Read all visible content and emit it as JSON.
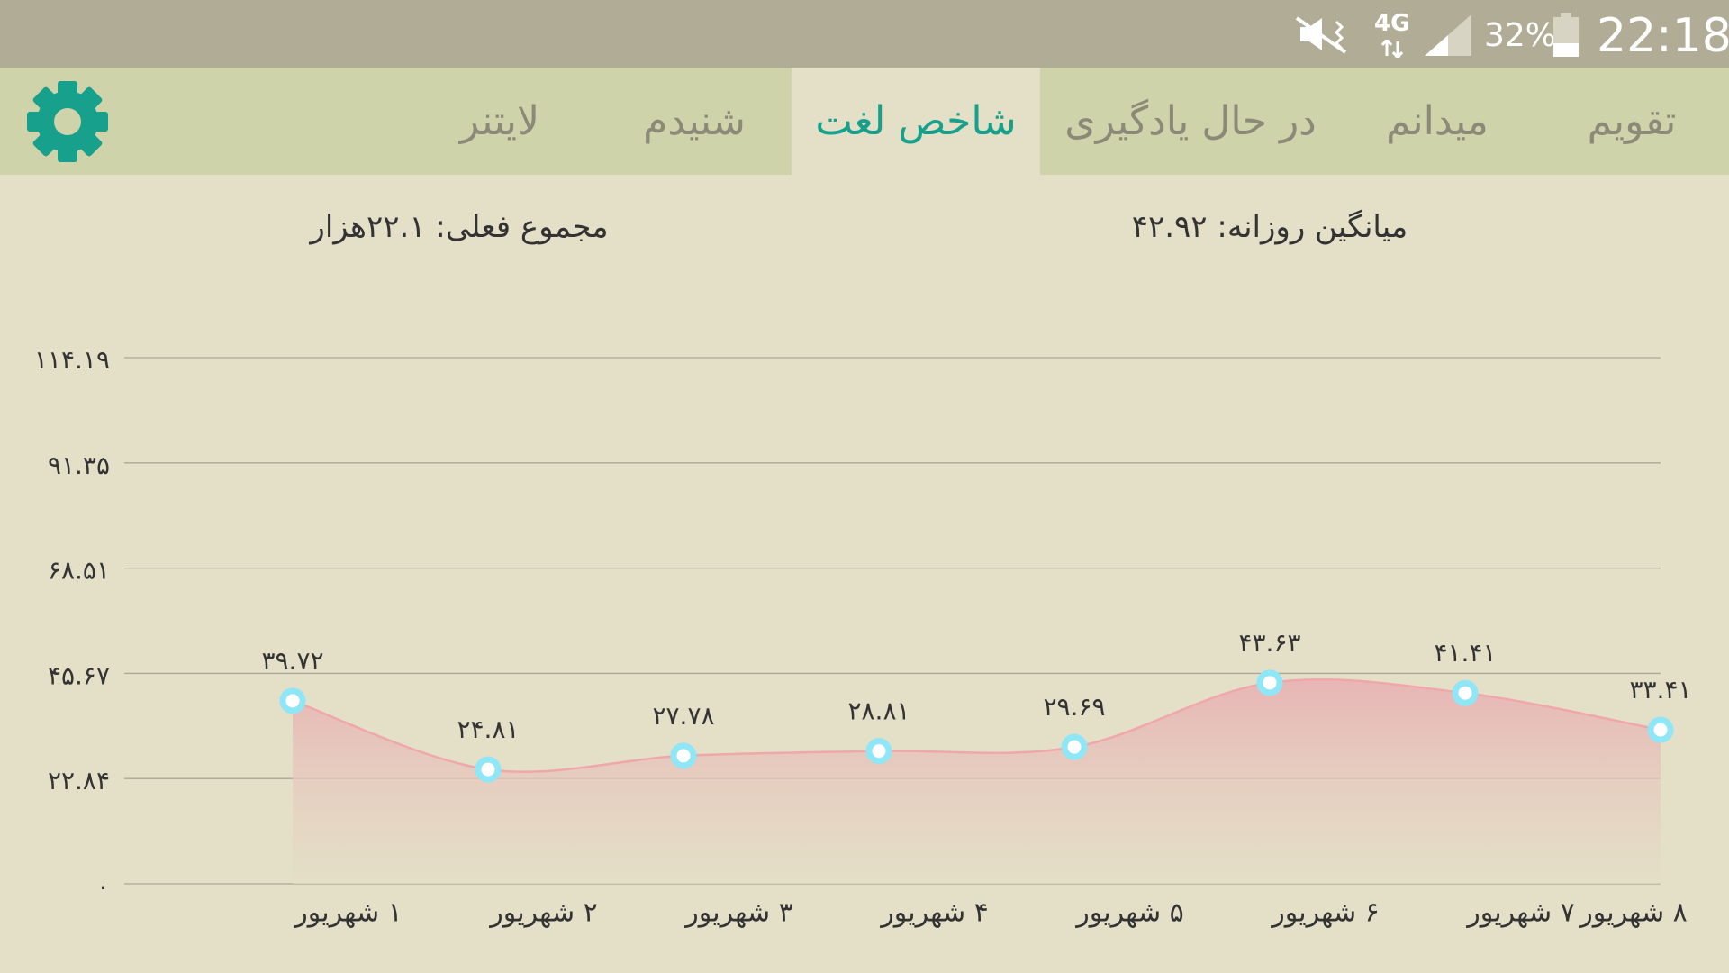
{
  "status_bar": {
    "network": "4G",
    "battery": "32%",
    "time": "22:18"
  },
  "tabs": [
    "تقویم",
    "میدانم",
    "در حال یادگیری",
    "شاخص لغت",
    "شنیدم",
    "لایتنر"
  ],
  "active_tab": 3,
  "stats": {
    "total": "مجموع فعلی: ۲۲.۱هزار",
    "daily_average": "میانگین روزانه: ۴۲.۹۲"
  },
  "chart_data": {
    "type": "area",
    "categories": [
      "۱ شهریور",
      "۲ شهریور",
      "۳ شهریور",
      "۴ شهریور",
      "۵ شهریور",
      "۶ شهریور",
      "۷ شهریور",
      "۸ شهریور"
    ],
    "values": [
      39.72,
      24.81,
      27.78,
      28.81,
      29.69,
      43.63,
      41.41,
      33.41
    ],
    "value_labels": [
      "۳۹.۷۲",
      "۲۴.۸۱",
      "۲۷.۷۸",
      "۲۸.۸۱",
      "۲۹.۶۹",
      "۴۳.۶۳",
      "۴۱.۴۱",
      "۳۳.۴۱"
    ],
    "color": "#f0a7aa",
    "ylim": [
      0,
      114.19
    ],
    "yticks": [
      {
        "value": 0,
        "label": "۰"
      },
      {
        "value": 22.84,
        "label": "۲۲.۸۴"
      },
      {
        "value": 45.67,
        "label": "۴۵.۶۷"
      },
      {
        "value": 68.51,
        "label": "۶۸.۵۱"
      },
      {
        "value": 91.35,
        "label": "۹۱.۳۵"
      },
      {
        "value": 114.19,
        "label": "۱۱۴.۱۹"
      }
    ],
    "grid": true
  }
}
